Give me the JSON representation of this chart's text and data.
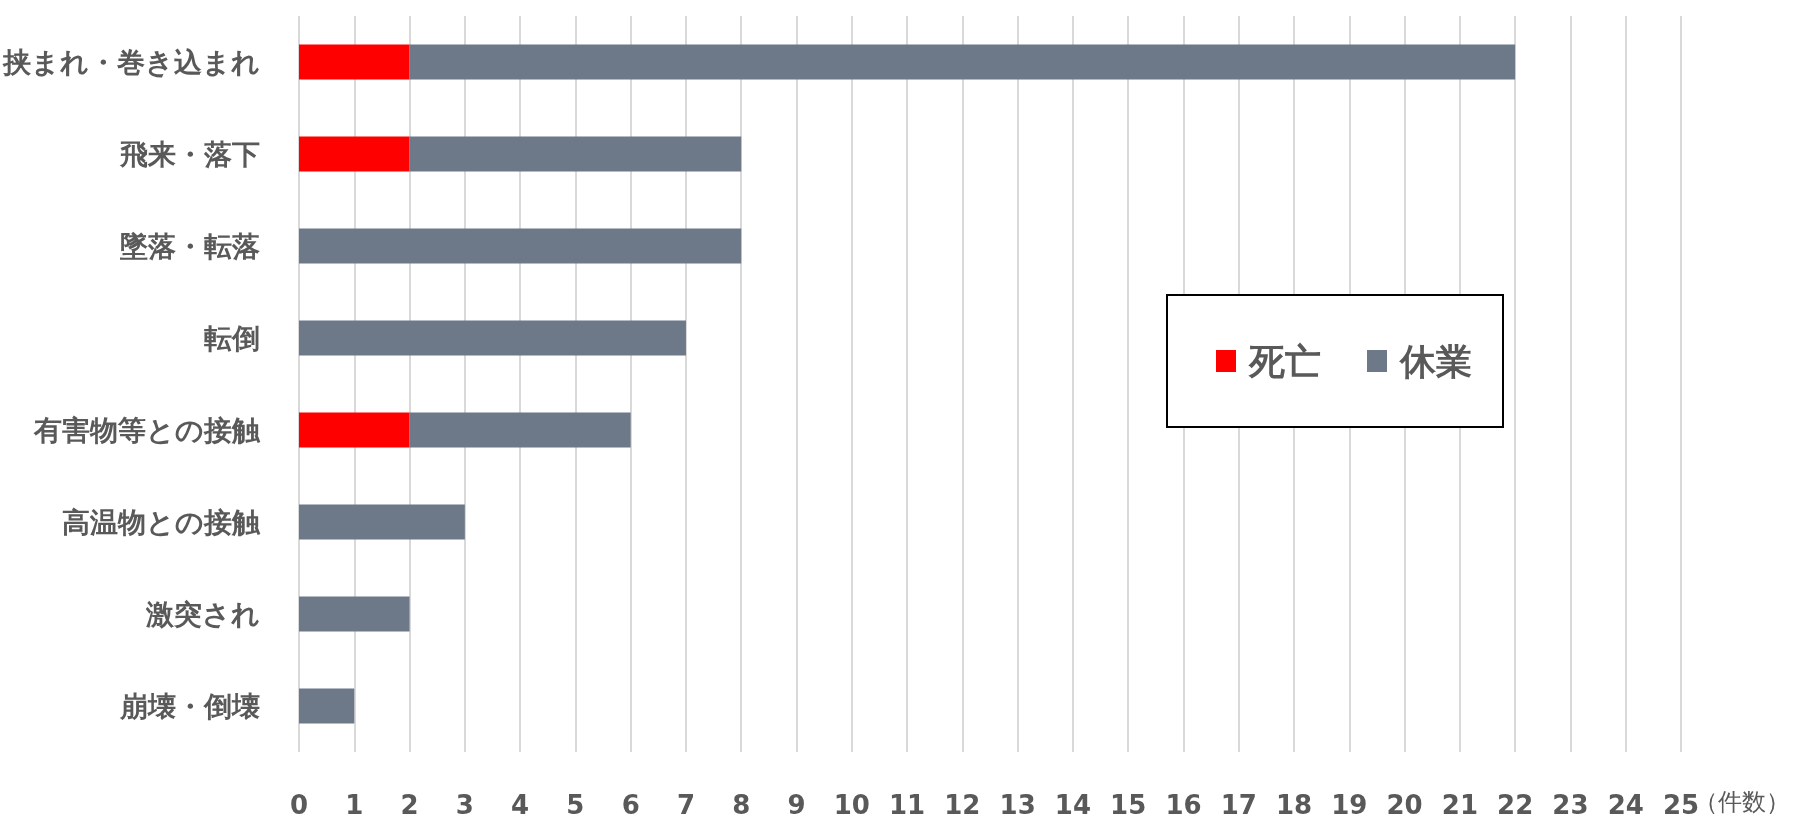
{
  "chart_data": {
    "type": "bar",
    "orientation": "horizontal",
    "stacked": true,
    "categories": [
      "挟まれ・巻き込まれ",
      "飛来・落下",
      "墜落・転落",
      "転倒",
      "有害物等との接触",
      "高温物との接触",
      "激突され",
      "崩壊・倒壊"
    ],
    "series": [
      {
        "name": "死亡",
        "color": "#ff0000",
        "values": [
          2,
          2,
          0,
          0,
          2,
          0,
          0,
          0
        ]
      },
      {
        "name": "休業",
        "color": "#6d7889",
        "values": [
          20,
          6,
          8,
          7,
          4,
          3,
          2,
          1
        ]
      }
    ],
    "xlabel": "（件数）",
    "xlim": [
      0,
      25
    ],
    "xticks": [
      0,
      1,
      2,
      3,
      4,
      5,
      6,
      7,
      8,
      9,
      10,
      11,
      12,
      13,
      14,
      15,
      16,
      17,
      18,
      19,
      20,
      21,
      22,
      23,
      24,
      25
    ],
    "grid": "x",
    "legend": "right"
  }
}
